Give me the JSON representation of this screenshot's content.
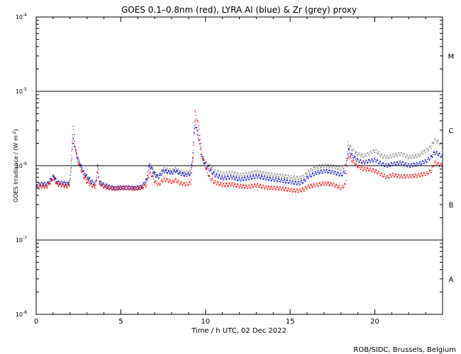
{
  "chart_data": {
    "type": "scatter",
    "title": "GOES 0.1–0.8nm (red), LYRA Al (blue) & Zr (grey) proxy",
    "xlabel": "Time / h UTC, 02 Dec 2022",
    "ylabel": "GOES Irradiance / (W m",
    "ylabel_sup": "-2",
    "ylabel_end": ")",
    "xlim": [
      0,
      24
    ],
    "ylim": [
      1e-08,
      0.0001
    ],
    "yscale": "log",
    "x_ticks": [
      {
        "value": 0,
        "label": "0"
      },
      {
        "value": 5,
        "label": "5"
      },
      {
        "value": 10,
        "label": "10"
      },
      {
        "value": 15,
        "label": "15"
      },
      {
        "value": 20,
        "label": "20"
      }
    ],
    "y_ticks": [
      {
        "value": 1e-08,
        "base": "10",
        "exp": "-8"
      },
      {
        "value": 1e-07,
        "base": "10",
        "exp": "-7"
      },
      {
        "value": 1e-06,
        "base": "10",
        "exp": "-6"
      },
      {
        "value": 1e-05,
        "base": "10",
        "exp": "-5"
      },
      {
        "value": 0.0001,
        "base": "10",
        "exp": "-4"
      }
    ],
    "reference_lines": [
      1e-07,
      1e-06,
      1e-05
    ],
    "flare_classes": [
      {
        "label": "A",
        "value": 3e-08
      },
      {
        "label": "B",
        "value": 3e-07
      },
      {
        "label": "C",
        "value": 3e-06
      },
      {
        "label": "M",
        "value": 3e-05
      }
    ],
    "series": [
      {
        "name": "GOES 0.1–0.8nm",
        "color": "#ff0000",
        "points": [
          [
            0.0,
            5e-07
          ],
          [
            0.3,
            5.3e-07
          ],
          [
            0.6,
            5.2e-07
          ],
          [
            0.9,
            6.3e-07
          ],
          [
            1.0,
            7e-07
          ],
          [
            1.2,
            5.6e-07
          ],
          [
            1.6,
            5.4e-07
          ],
          [
            1.8,
            5.3e-07
          ],
          [
            1.95,
            5.6e-07
          ],
          [
            2.05,
            1.1e-06
          ],
          [
            2.1,
            2.2e-06
          ],
          [
            2.15,
            3.5e-06
          ],
          [
            2.25,
            2.1e-06
          ],
          [
            2.4,
            1.2e-06
          ],
          [
            2.6,
            9e-07
          ],
          [
            2.8,
            7e-07
          ],
          [
            3.0,
            6e-07
          ],
          [
            3.2,
            5.5e-07
          ],
          [
            3.45,
            5.2e-07
          ],
          [
            3.55,
            6.5e-07
          ],
          [
            3.6,
            1e-06
          ],
          [
            3.7,
            5.8e-07
          ],
          [
            4.0,
            5.2e-07
          ],
          [
            4.3,
            5e-07
          ],
          [
            4.6,
            4.9e-07
          ],
          [
            5.0,
            5e-07
          ],
          [
            5.4,
            5e-07
          ],
          [
            5.8,
            4.9e-07
          ],
          [
            6.2,
            5e-07
          ],
          [
            6.5,
            5.5e-07
          ],
          [
            6.65,
            8e-07
          ],
          [
            6.8,
            7.5e-07
          ],
          [
            7.0,
            6e-07
          ],
          [
            7.2,
            5.5e-07
          ],
          [
            7.5,
            6.5e-07
          ],
          [
            7.8,
            6.3e-07
          ],
          [
            8.0,
            6e-07
          ],
          [
            8.2,
            6.4e-07
          ],
          [
            8.5,
            5.8e-07
          ],
          [
            8.8,
            5.6e-07
          ],
          [
            9.1,
            5.8e-07
          ],
          [
            9.25,
            1.3e-06
          ],
          [
            9.3,
            3e-06
          ],
          [
            9.35,
            5.3e-06
          ],
          [
            9.45,
            4.5e-06
          ],
          [
            9.6,
            3.2e-06
          ],
          [
            9.7,
            1.9e-06
          ],
          [
            9.8,
            1.3e-06
          ],
          [
            10.0,
            9e-07
          ],
          [
            10.2,
            7e-07
          ],
          [
            10.5,
            6e-07
          ],
          [
            11.0,
            5.5e-07
          ],
          [
            11.5,
            5.6e-07
          ],
          [
            12.0,
            5.3e-07
          ],
          [
            12.5,
            5.2e-07
          ],
          [
            13.0,
            5.5e-07
          ],
          [
            13.5,
            5.1e-07
          ],
          [
            14.0,
            5e-07
          ],
          [
            14.5,
            4.9e-07
          ],
          [
            15.0,
            4.7e-07
          ],
          [
            15.5,
            4.6e-07
          ],
          [
            15.8,
            4.8e-07
          ],
          [
            16.0,
            5.2e-07
          ],
          [
            16.5,
            5.5e-07
          ],
          [
            17.0,
            5.8e-07
          ],
          [
            17.5,
            5.6e-07
          ],
          [
            18.0,
            5e-07
          ],
          [
            18.25,
            5.6e-07
          ],
          [
            18.4,
            1.4e-06
          ],
          [
            18.6,
            1.2e-06
          ],
          [
            18.9,
            1e-06
          ],
          [
            19.3,
            9e-07
          ],
          [
            19.6,
            9e-07
          ],
          [
            20.0,
            8.5e-07
          ],
          [
            20.4,
            7.5e-07
          ],
          [
            20.7,
            7e-07
          ],
          [
            21.0,
            7.5e-07
          ],
          [
            21.5,
            7.2e-07
          ],
          [
            22.0,
            7.2e-07
          ],
          [
            22.5,
            7.4e-07
          ],
          [
            23.0,
            7.8e-07
          ],
          [
            23.3,
            8.5e-07
          ],
          [
            23.5,
            1.1e-06
          ],
          [
            23.7,
            1.05e-06
          ],
          [
            24.0,
            1e-06
          ]
        ]
      },
      {
        "name": "LYRA Al proxy",
        "color": "#0000cc",
        "points": [
          [
            0.0,
            5.5e-07
          ],
          [
            0.3,
            5.7e-07
          ],
          [
            0.6,
            5.6e-07
          ],
          [
            0.9,
            6.8e-07
          ],
          [
            1.0,
            7.3e-07
          ],
          [
            1.2,
            6e-07
          ],
          [
            1.6,
            5.8e-07
          ],
          [
            1.8,
            5.7e-07
          ],
          [
            1.95,
            6e-07
          ],
          [
            2.05,
            1e-06
          ],
          [
            2.1,
            1.6e-06
          ],
          [
            2.15,
            2.2e-06
          ],
          [
            2.25,
            1.8e-06
          ],
          [
            2.4,
            1.3e-06
          ],
          [
            2.6,
            1e-06
          ],
          [
            2.8,
            8e-07
          ],
          [
            3.0,
            7e-07
          ],
          [
            3.2,
            6.2e-07
          ],
          [
            3.45,
            5.6e-07
          ],
          [
            3.55,
            6.8e-07
          ],
          [
            3.6,
            1e-06
          ],
          [
            3.7,
            6e-07
          ],
          [
            4.0,
            5.5e-07
          ],
          [
            4.3,
            5.2e-07
          ],
          [
            4.6,
            5e-07
          ],
          [
            5.0,
            5.1e-07
          ],
          [
            5.4,
            5.1e-07
          ],
          [
            5.8,
            5e-07
          ],
          [
            6.2,
            5.2e-07
          ],
          [
            6.5,
            6.5e-07
          ],
          [
            6.65,
            1e-06
          ],
          [
            6.8,
            9e-07
          ],
          [
            7.0,
            7.5e-07
          ],
          [
            7.2,
            7e-07
          ],
          [
            7.5,
            8.5e-07
          ],
          [
            7.8,
            8.2e-07
          ],
          [
            8.0,
            8e-07
          ],
          [
            8.2,
            8.5e-07
          ],
          [
            8.5,
            7.8e-07
          ],
          [
            8.8,
            7.5e-07
          ],
          [
            9.1,
            7.8e-07
          ],
          [
            9.25,
            1.5e-06
          ],
          [
            9.3,
            2.6e-06
          ],
          [
            9.35,
            3.6e-06
          ],
          [
            9.45,
            3.1e-06
          ],
          [
            9.6,
            2.1e-06
          ],
          [
            9.7,
            1.5e-06
          ],
          [
            9.8,
            1.2e-06
          ],
          [
            10.0,
            1e-06
          ],
          [
            10.2,
            9e-07
          ],
          [
            10.5,
            7.5e-07
          ],
          [
            11.0,
            6.8e-07
          ],
          [
            11.5,
            7e-07
          ],
          [
            12.0,
            6.5e-07
          ],
          [
            12.5,
            6.8e-07
          ],
          [
            13.0,
            7.2e-07
          ],
          [
            13.5,
            6.8e-07
          ],
          [
            14.0,
            6.5e-07
          ],
          [
            14.5,
            6.3e-07
          ],
          [
            15.0,
            6e-07
          ],
          [
            15.5,
            5.8e-07
          ],
          [
            15.8,
            6.2e-07
          ],
          [
            16.0,
            7e-07
          ],
          [
            16.5,
            8e-07
          ],
          [
            17.0,
            8.5e-07
          ],
          [
            17.5,
            8.2e-07
          ],
          [
            18.0,
            7.5e-07
          ],
          [
            18.25,
            8.5e-07
          ],
          [
            18.4,
            1.7e-06
          ],
          [
            18.6,
            1.4e-06
          ],
          [
            18.9,
            1.2e-06
          ],
          [
            19.3,
            1.1e-06
          ],
          [
            19.6,
            1.15e-06
          ],
          [
            20.0,
            1.2e-06
          ],
          [
            20.4,
            1.05e-06
          ],
          [
            20.7,
            1e-06
          ],
          [
            21.0,
            1.05e-06
          ],
          [
            21.5,
            1.1e-06
          ],
          [
            22.0,
            1e-06
          ],
          [
            22.5,
            1.05e-06
          ],
          [
            23.0,
            1.15e-06
          ],
          [
            23.3,
            1.3e-06
          ],
          [
            23.5,
            1.5e-06
          ],
          [
            23.7,
            1.45e-06
          ],
          [
            24.0,
            1.3e-06
          ]
        ]
      },
      {
        "name": "LYRA Zr proxy",
        "color": "#888888",
        "points": [
          [
            0.0,
            5.2e-07
          ],
          [
            0.3,
            5.5e-07
          ],
          [
            0.6,
            5.4e-07
          ],
          [
            0.9,
            6.5e-07
          ],
          [
            1.0,
            7.1e-07
          ],
          [
            1.2,
            5.8e-07
          ],
          [
            1.6,
            5.6e-07
          ],
          [
            1.8,
            5.5e-07
          ],
          [
            1.95,
            5.8e-07
          ],
          [
            2.05,
            1e-06
          ],
          [
            2.1,
            1.8e-06
          ],
          [
            2.15,
            2.5e-06
          ],
          [
            2.25,
            1.9e-06
          ],
          [
            2.4,
            1.3e-06
          ],
          [
            2.6,
            1e-06
          ],
          [
            2.8,
            7.8e-07
          ],
          [
            3.0,
            6.8e-07
          ],
          [
            3.2,
            6e-07
          ],
          [
            3.45,
            5.4e-07
          ],
          [
            3.55,
            6.6e-07
          ],
          [
            3.6,
            1e-06
          ],
          [
            3.7,
            5.9e-07
          ],
          [
            4.0,
            5.3e-07
          ],
          [
            4.3,
            5.1e-07
          ],
          [
            4.6,
            4.9e-07
          ],
          [
            5.0,
            5e-07
          ],
          [
            5.4,
            5e-07
          ],
          [
            5.8,
            4.9e-07
          ],
          [
            6.2,
            5.1e-07
          ],
          [
            6.5,
            6.3e-07
          ],
          [
            6.65,
            1.05e-06
          ],
          [
            6.8,
            9.5e-07
          ],
          [
            7.0,
            7.8e-07
          ],
          [
            7.2,
            7.3e-07
          ],
          [
            7.5,
            9e-07
          ],
          [
            7.8,
            8.7e-07
          ],
          [
            8.0,
            8.5e-07
          ],
          [
            8.2,
            9e-07
          ],
          [
            8.5,
            8.2e-07
          ],
          [
            8.8,
            8e-07
          ],
          [
            9.1,
            8.3e-07
          ],
          [
            9.25,
            1.6e-06
          ],
          [
            9.3,
            2.8e-06
          ],
          [
            9.35,
            4e-06
          ],
          [
            9.45,
            3.4e-06
          ],
          [
            9.6,
            2.3e-06
          ],
          [
            9.7,
            1.7e-06
          ],
          [
            9.8,
            1.35e-06
          ],
          [
            10.0,
            1.1e-06
          ],
          [
            10.2,
            1e-06
          ],
          [
            10.5,
            8.5e-07
          ],
          [
            11.0,
            7.8e-07
          ],
          [
            11.5,
            8e-07
          ],
          [
            12.0,
            7.5e-07
          ],
          [
            12.5,
            7.8e-07
          ],
          [
            13.0,
            8.3e-07
          ],
          [
            13.5,
            7.8e-07
          ],
          [
            14.0,
            7.5e-07
          ],
          [
            14.5,
            7.3e-07
          ],
          [
            15.0,
            7e-07
          ],
          [
            15.5,
            6.8e-07
          ],
          [
            15.8,
            7.2e-07
          ],
          [
            16.0,
            8.2e-07
          ],
          [
            16.5,
            9.5e-07
          ],
          [
            17.0,
            1e-06
          ],
          [
            17.5,
            9.8e-07
          ],
          [
            18.0,
            9e-07
          ],
          [
            18.25,
            1e-06
          ],
          [
            18.4,
            2e-06
          ],
          [
            18.6,
            1.7e-06
          ],
          [
            18.9,
            1.45e-06
          ],
          [
            19.3,
            1.35e-06
          ],
          [
            19.6,
            1.45e-06
          ],
          [
            20.0,
            1.6e-06
          ],
          [
            20.4,
            1.35e-06
          ],
          [
            20.7,
            1.3e-06
          ],
          [
            21.0,
            1.35e-06
          ],
          [
            21.5,
            1.45e-06
          ],
          [
            22.0,
            1.3e-06
          ],
          [
            22.5,
            1.35e-06
          ],
          [
            23.0,
            1.6e-06
          ],
          [
            23.3,
            1.8e-06
          ],
          [
            23.5,
            2.2e-06
          ],
          [
            23.7,
            2.1e-06
          ],
          [
            24.0,
            1.8e-06
          ]
        ]
      }
    ]
  },
  "credit": "ROB/SIDC, Brussels, Belgium"
}
